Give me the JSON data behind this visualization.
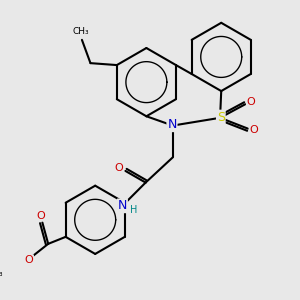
{
  "bg_color": "#e8e8e8",
  "bond_color": "#000000",
  "bond_lw": 1.5,
  "atom_colors": {
    "N": "#0000cc",
    "S": "#cccc00",
    "O": "#cc0000",
    "H": "#008888"
  },
  "font_size": 8.0,
  "arom_ratio": 0.6
}
